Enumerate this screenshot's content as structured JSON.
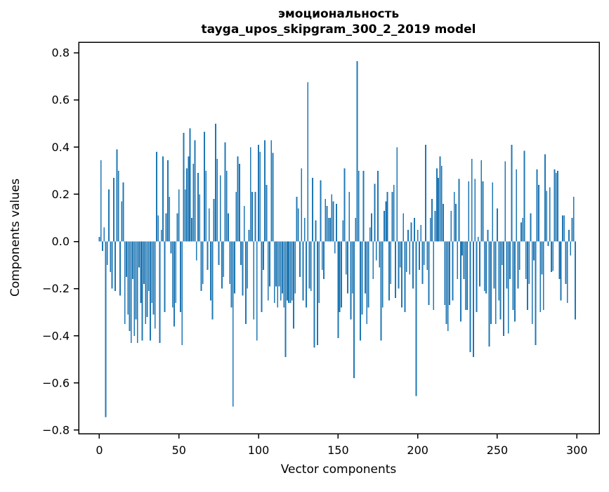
{
  "chart_data": {
    "type": "bar",
    "title": "эмоциональность",
    "subtitle": "tayga_upos_skipgram_300_2_2019 model",
    "xlabel": "Vector components",
    "ylabel": "Components values",
    "bar_color": "#1f77b4",
    "background_color": "#ffffff",
    "spine_color": "#000000",
    "grid": false,
    "legend_position": "none",
    "xlim": [
      -13,
      314
    ],
    "ylim": [
      -0.815,
      0.845
    ],
    "xticks": [
      0,
      50,
      100,
      150,
      200,
      250,
      300
    ],
    "yticks": [
      -0.8,
      -0.6,
      -0.4,
      -0.2,
      0.0,
      0.2,
      0.4,
      0.6,
      0.8
    ],
    "n_components": 300,
    "values": [
      0.02,
      0.345,
      -0.04,
      0.06,
      -0.745,
      -0.1,
      0.22,
      -0.13,
      -0.2,
      0.27,
      -0.21,
      0.39,
      0.3,
      -0.23,
      0.17,
      0.25,
      -0.35,
      -0.15,
      -0.31,
      -0.38,
      -0.43,
      -0.16,
      -0.4,
      -0.33,
      -0.43,
      -0.11,
      -0.26,
      -0.42,
      -0.18,
      -0.35,
      -0.32,
      -0.21,
      -0.42,
      -0.26,
      -0.31,
      -0.37,
      0.38,
      0.11,
      -0.43,
      0.05,
      0.36,
      -0.3,
      0.12,
      0.345,
      0.19,
      -0.05,
      -0.28,
      -0.36,
      -0.26,
      0.12,
      0.22,
      -0.3,
      -0.44,
      0.46,
      0.22,
      0.31,
      0.36,
      0.48,
      0.1,
      0.33,
      0.43,
      -0.08,
      0.29,
      0.2,
      -0.21,
      -0.18,
      0.465,
      0.3,
      -0.12,
      0.14,
      -0.25,
      -0.33,
      0.18,
      0.5,
      0.35,
      -0.1,
      0.28,
      -0.2,
      -0.15,
      0.42,
      0.3,
      0.12,
      -0.18,
      -0.28,
      -0.7,
      -0.22,
      0.21,
      0.36,
      0.33,
      -0.1,
      -0.23,
      0.15,
      -0.35,
      -0.2,
      0.05,
      0.4,
      0.21,
      -0.33,
      0.21,
      -0.42,
      0.41,
      0.38,
      -0.3,
      -0.12,
      0.43,
      0.24,
      -0.25,
      -0.19,
      0.43,
      0.375,
      -0.26,
      -0.19,
      -0.28,
      -0.19,
      -0.25,
      -0.22,
      -0.28,
      -0.49,
      -0.25,
      -0.26,
      -0.26,
      -0.25,
      -0.37,
      -0.22,
      0.19,
      0.14,
      -0.15,
      0.31,
      -0.25,
      0.1,
      -0.28,
      0.675,
      -0.2,
      -0.21,
      0.27,
      -0.45,
      0.09,
      -0.44,
      -0.26,
      0.26,
      -0.12,
      -0.16,
      0.18,
      0.15,
      0.1,
      0.1,
      0.2,
      0.17,
      -0.05,
      0.16,
      -0.41,
      -0.3,
      -0.28,
      0.09,
      0.31,
      -0.14,
      -0.22,
      0.21,
      -0.33,
      -0.22,
      -0.58,
      0.1,
      0.765,
      0.3,
      -0.42,
      -0.31,
      0.3,
      -0.22,
      -0.35,
      -0.28,
      0.06,
      0.12,
      -0.16,
      0.245,
      -0.08,
      0.3,
      -0.11,
      -0.42,
      -0.28,
      0.13,
      0.17,
      0.21,
      -0.25,
      -0.18,
      0.21,
      0.24,
      -0.24,
      0.4,
      -0.2,
      -0.11,
      -0.28,
      0.12,
      -0.3,
      -0.13,
      0.05,
      -0.14,
      0.08,
      -0.2,
      0.1,
      -0.655,
      0.05,
      -0.12,
      0.07,
      -0.18,
      -0.1,
      0.41,
      -0.12,
      -0.27,
      0.1,
      0.18,
      -0.29,
      0.13,
      0.31,
      0.27,
      0.36,
      0.32,
      0.16,
      -0.27,
      -0.35,
      -0.38,
      -0.27,
      0.13,
      -0.25,
      0.21,
      0.16,
      -0.16,
      0.265,
      -0.34,
      -0.06,
      -0.16,
      -0.29,
      -0.29,
      0.255,
      -0.47,
      0.35,
      -0.49,
      0.265,
      -0.3,
      0.02,
      -0.19,
      0.345,
      0.255,
      -0.21,
      -0.22,
      0.05,
      -0.445,
      -0.35,
      0.25,
      -0.2,
      -0.35,
      0.14,
      -0.25,
      -0.33,
      -0.1,
      -0.4,
      0.34,
      -0.2,
      -0.39,
      -0.16,
      0.41,
      -0.29,
      -0.34,
      0.305,
      -0.2,
      -0.12,
      0.08,
      0.1,
      0.385,
      -0.16,
      -0.29,
      -0.18,
      0.12,
      -0.35,
      -0.08,
      -0.44,
      0.305,
      0.24,
      -0.3,
      -0.14,
      -0.29,
      0.37,
      0.215,
      -0.02,
      0.23,
      -0.13,
      -0.125,
      0.305,
      0.29,
      0.3,
      -0.16,
      -0.25,
      0.11,
      0.11,
      -0.18,
      -0.26,
      0.05,
      -0.06,
      0.1,
      0.19,
      -0.33
    ]
  }
}
